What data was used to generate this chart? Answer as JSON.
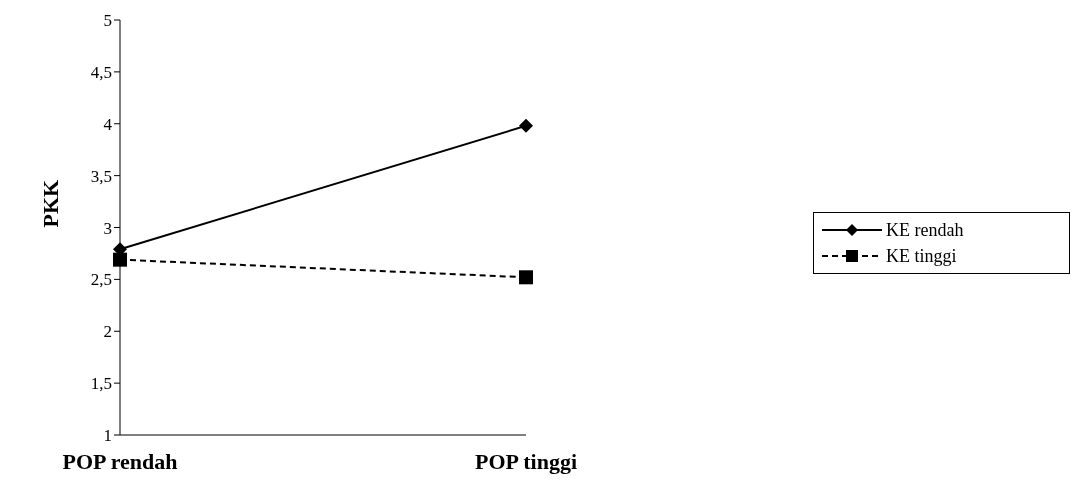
{
  "chart_data": {
    "type": "line",
    "ylabel": "PKK",
    "categories": [
      "POP rendah",
      "POP tinggi"
    ],
    "series": [
      {
        "name": "KE rendah",
        "color": "#000000",
        "values": [
          2.79,
          3.98
        ],
        "marker": "diamond",
        "line_style": "solid"
      },
      {
        "name": "KE tinggi",
        "color": "#000000",
        "values": [
          2.69,
          2.52
        ],
        "marker": "square",
        "line_style": "dashed"
      }
    ],
    "ylim": [
      1,
      5
    ],
    "yticks": [
      1,
      {
        "value": 1.5,
        "label": "1,5"
      },
      2,
      {
        "value": 2.5,
        "label": "2,5"
      },
      3,
      {
        "value": 3.5,
        "label": "3,5"
      },
      4,
      {
        "value": 4.5,
        "label": "4,5"
      },
      5
    ],
    "grid": false,
    "legend": "right"
  }
}
